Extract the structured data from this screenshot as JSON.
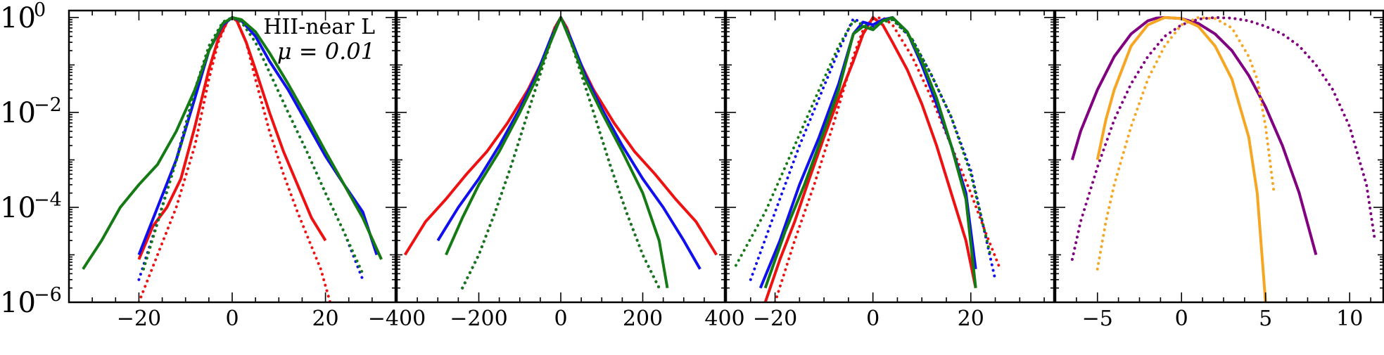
{
  "colors": {
    "red": "#ee1111",
    "blue": "#1010ee",
    "green": "#147a14",
    "orange": "#f5a623",
    "purple": "#800080"
  },
  "annotation": {
    "line1": "HII-near L",
    "line2": "μ = 0.01"
  },
  "yticks": [
    {
      "base": "10",
      "exp": "0",
      "value": 1
    },
    {
      "base": "10",
      "exp": "−2",
      "value": 0.01
    },
    {
      "base": "10",
      "exp": "−4",
      "value": 0.0001
    },
    {
      "base": "10",
      "exp": "−6",
      "value": 1e-06
    }
  ],
  "chart_data": [
    {
      "type": "line",
      "yscale": "log",
      "ylim": [
        1e-06,
        1.4
      ],
      "xlim": [
        -35,
        35
      ],
      "xticks": [
        -20,
        0,
        20
      ],
      "xticklabels": [
        "−20",
        "0",
        "20"
      ],
      "series": [
        {
          "color": "red",
          "style": "solid",
          "x": [
            -20,
            -17,
            -14,
            -11,
            -8,
            -5,
            -3,
            -1,
            0,
            1,
            3,
            5,
            8,
            11,
            14,
            17,
            20
          ],
          "y": [
            8e-06,
            4e-05,
            0.0001,
            0.0004,
            0.005,
            0.08,
            0.35,
            0.85,
            1,
            0.85,
            0.3,
            0.08,
            0.01,
            0.0015,
            0.0003,
            6e-05,
            2e-05
          ]
        },
        {
          "color": "red",
          "style": "dotted",
          "x": [
            -20,
            -16,
            -12,
            -8,
            -5,
            -3,
            -1,
            0,
            1,
            3,
            5,
            8,
            11,
            14,
            17,
            19,
            21
          ],
          "y": [
            1e-06,
            1e-05,
            0.0001,
            0.002,
            0.05,
            0.3,
            0.85,
            1,
            0.85,
            0.3,
            0.05,
            0.004,
            0.0005,
            8e-05,
            1.5e-05,
            5e-06,
            1e-06
          ]
        },
        {
          "color": "blue",
          "style": "solid",
          "x": [
            -20,
            -16,
            -12,
            -8,
            -5,
            -2,
            0,
            2,
            5,
            8,
            12,
            16,
            20,
            24,
            28,
            31
          ],
          "y": [
            1e-05,
            0.0001,
            0.001,
            0.02,
            0.2,
            0.7,
            1,
            0.85,
            0.4,
            0.12,
            0.03,
            0.006,
            0.0012,
            0.0003,
            8e-05,
            1e-05
          ]
        },
        {
          "color": "blue",
          "style": "dotted",
          "x": [
            -20,
            -16,
            -12,
            -8,
            -5,
            -2,
            0,
            2,
            5,
            8,
            12,
            16,
            20,
            24,
            28
          ],
          "y": [
            3e-06,
            5e-05,
            0.001,
            0.03,
            0.25,
            0.8,
            1,
            0.8,
            0.3,
            0.07,
            0.01,
            0.0015,
            0.0002,
            3e-05,
            3e-06
          ]
        },
        {
          "color": "green",
          "style": "solid",
          "x": [
            -32,
            -28,
            -24,
            -20,
            -16,
            -12,
            -8,
            -5,
            -2,
            0,
            2,
            5,
            8,
            12,
            16,
            20,
            24,
            28,
            32
          ],
          "y": [
            5e-06,
            2e-05,
            0.0001,
            0.0003,
            0.0008,
            0.004,
            0.03,
            0.2,
            0.75,
            1,
            0.9,
            0.5,
            0.18,
            0.04,
            0.008,
            0.0015,
            0.0003,
            6e-05,
            8e-06
          ]
        },
        {
          "color": "green",
          "style": "dotted",
          "x": [
            -19,
            -15,
            -11,
            -8,
            -5,
            -2,
            0,
            2,
            5,
            8,
            12,
            16,
            20,
            24,
            28
          ],
          "y": [
            5e-06,
            0.0001,
            0.002,
            0.03,
            0.25,
            0.8,
            1,
            0.8,
            0.3,
            0.07,
            0.01,
            0.0015,
            0.0002,
            3e-05,
            4e-06
          ]
        }
      ]
    },
    {
      "type": "line",
      "yscale": "log",
      "ylim": [
        1e-06,
        1.4
      ],
      "xlim": [
        -400,
        400
      ],
      "xticks": [
        -400,
        -200,
        0,
        200,
        400
      ],
      "xticklabels": [
        "−400",
        "−200",
        "0",
        "200",
        "400"
      ],
      "series": [
        {
          "color": "red",
          "style": "solid",
          "x": [
            -380,
            -330,
            -280,
            -230,
            -180,
            -130,
            -80,
            -40,
            -15,
            0,
            15,
            40,
            80,
            130,
            180,
            230,
            280,
            330,
            380
          ],
          "y": [
            1e-05,
            5e-05,
            0.00015,
            0.0005,
            0.0015,
            0.006,
            0.03,
            0.15,
            0.6,
            1,
            0.6,
            0.15,
            0.03,
            0.006,
            0.0015,
            0.0005,
            0.00015,
            5e-05,
            1e-05
          ]
        },
        {
          "color": "red",
          "style": "dotted",
          "x": [
            -240,
            -200,
            -160,
            -120,
            -80,
            -40,
            -15,
            0,
            15,
            40,
            80,
            120,
            160,
            200,
            240
          ],
          "y": [
            2e-06,
            1e-05,
            8e-05,
            0.0008,
            0.01,
            0.12,
            0.55,
            1,
            0.55,
            0.12,
            0.01,
            0.0008,
            8e-05,
            1e-05,
            2e-06
          ]
        },
        {
          "color": "blue",
          "style": "solid",
          "x": [
            -300,
            -250,
            -200,
            -150,
            -100,
            -60,
            -25,
            0,
            25,
            60,
            100,
            150,
            200,
            250,
            300,
            340
          ],
          "y": [
            2e-05,
            0.0001,
            0.0004,
            0.002,
            0.012,
            0.06,
            0.35,
            1,
            0.35,
            0.06,
            0.012,
            0.002,
            0.0004,
            0.0001,
            2e-05,
            5e-06
          ]
        },
        {
          "color": "blue",
          "style": "dotted",
          "x": [
            -240,
            -200,
            -160,
            -120,
            -80,
            -40,
            -15,
            0,
            15,
            40,
            80,
            120,
            160,
            200,
            240
          ],
          "y": [
            2e-06,
            1e-05,
            8e-05,
            0.0008,
            0.01,
            0.12,
            0.55,
            1,
            0.55,
            0.12,
            0.01,
            0.0008,
            8e-05,
            1e-05,
            2e-06
          ]
        },
        {
          "color": "green",
          "style": "solid",
          "x": [
            -280,
            -240,
            -200,
            -150,
            -100,
            -60,
            -25,
            0,
            25,
            60,
            100,
            150,
            200,
            240,
            260
          ],
          "y": [
            1e-05,
            6e-05,
            0.0003,
            0.0015,
            0.01,
            0.05,
            0.3,
            1,
            0.3,
            0.05,
            0.01,
            0.0015,
            0.0002,
            2e-05,
            2e-06
          ]
        },
        {
          "color": "green",
          "style": "dotted",
          "x": [
            -240,
            -200,
            -160,
            -120,
            -80,
            -40,
            -15,
            0,
            15,
            40,
            80,
            120,
            160,
            200,
            240
          ],
          "y": [
            2e-06,
            1e-05,
            8e-05,
            0.0008,
            0.01,
            0.12,
            0.55,
            1,
            0.55,
            0.12,
            0.01,
            0.0008,
            8e-05,
            1e-05,
            2e-06
          ]
        }
      ]
    },
    {
      "type": "line",
      "yscale": "log",
      "ylim": [
        1e-06,
        1.4
      ],
      "xlim": [
        -30,
        37
      ],
      "xticks": [
        -20,
        0,
        20
      ],
      "xticklabels": [
        "−20",
        "0",
        "20"
      ],
      "series": [
        {
          "color": "red",
          "style": "solid",
          "x": [
            -22,
            -19,
            -16,
            -13,
            -10,
            -7,
            -4,
            -2,
            0,
            2,
            4,
            7,
            10,
            13,
            16,
            19,
            21
          ],
          "y": [
            1e-06,
            8e-06,
            5e-05,
            0.0004,
            0.003,
            0.02,
            0.12,
            0.45,
            1,
            0.7,
            0.3,
            0.08,
            0.015,
            0.002,
            0.0002,
            2e-05,
            2e-06
          ]
        },
        {
          "color": "red",
          "style": "dotted",
          "x": [
            -20,
            -16,
            -12,
            -8,
            -4,
            -2,
            0,
            2,
            4,
            8,
            12,
            16,
            20,
            23,
            26
          ],
          "y": [
            1e-06,
            2e-05,
            0.0003,
            0.006,
            0.15,
            0.55,
            0.95,
            1,
            0.7,
            0.15,
            0.02,
            0.002,
            0.0002,
            3e-05,
            5e-06
          ]
        },
        {
          "color": "blue",
          "style": "solid",
          "x": [
            -23,
            -19,
            -15,
            -11,
            -7,
            -4,
            -2,
            0,
            2,
            4,
            7,
            10,
            13,
            16,
            19,
            21
          ],
          "y": [
            2e-06,
            2e-05,
            0.0003,
            0.003,
            0.04,
            0.45,
            0.8,
            0.7,
            0.9,
            1,
            0.5,
            0.1,
            0.015,
            0.002,
            0.0002,
            5e-06
          ]
        },
        {
          "color": "blue",
          "style": "dotted",
          "x": [
            -25,
            -20,
            -15,
            -11,
            -7,
            -4,
            -2,
            0,
            2,
            4,
            8,
            12,
            16,
            20,
            25
          ],
          "y": [
            3e-06,
            8e-05,
            0.002,
            0.02,
            0.2,
            0.95,
            0.75,
            0.65,
            0.85,
            0.95,
            0.35,
            0.06,
            0.008,
            0.0006,
            3e-06
          ]
        },
        {
          "color": "green",
          "style": "solid",
          "x": [
            -22,
            -18,
            -14,
            -10,
            -7,
            -4,
            -2,
            0,
            2,
            4,
            7,
            10,
            13,
            16,
            19,
            21
          ],
          "y": [
            2e-06,
            3e-05,
            0.0003,
            0.004,
            0.03,
            0.45,
            0.65,
            0.55,
            0.85,
            1,
            0.5,
            0.12,
            0.02,
            0.002,
            0.00015,
            2e-06
          ]
        },
        {
          "color": "green",
          "style": "dotted",
          "x": [
            -28,
            -22,
            -16,
            -11,
            -7,
            -4,
            -2,
            0,
            2,
            4,
            8,
            12,
            16,
            20,
            24
          ],
          "y": [
            6e-06,
            8e-05,
            0.002,
            0.03,
            0.25,
            0.85,
            0.7,
            0.6,
            0.8,
            0.9,
            0.35,
            0.06,
            0.008,
            0.0005,
            1e-05
          ]
        }
      ]
    },
    {
      "type": "line",
      "yscale": "log",
      "ylim": [
        1e-06,
        1.4
      ],
      "xlim": [
        -7.5,
        12
      ],
      "xticks": [
        -5,
        0,
        5,
        10
      ],
      "xticklabels": [
        "−5",
        "0",
        "5",
        "10"
      ],
      "series": [
        {
          "color": "purple",
          "style": "solid",
          "x": [
            -6.5,
            -6,
            -5,
            -4,
            -3,
            -2,
            -1.5,
            -1,
            0,
            1,
            2,
            3,
            4,
            5,
            6,
            7,
            8
          ],
          "y": [
            0.001,
            0.004,
            0.03,
            0.15,
            0.45,
            0.85,
            0.97,
            1,
            0.95,
            0.75,
            0.45,
            0.2,
            0.06,
            0.013,
            0.002,
            0.0002,
            1e-05
          ]
        },
        {
          "color": "purple",
          "style": "dotted",
          "x": [
            -6.5,
            -6,
            -5,
            -4,
            -3,
            -2,
            -1,
            0,
            1,
            2,
            3,
            4,
            5,
            6,
            7,
            8,
            9,
            10,
            11,
            11.5
          ],
          "y": [
            8e-06,
            5e-05,
            0.0007,
            0.007,
            0.04,
            0.15,
            0.4,
            0.7,
            0.92,
            1,
            0.97,
            0.85,
            0.65,
            0.45,
            0.25,
            0.1,
            0.03,
            0.005,
            0.0003,
            2e-05
          ]
        },
        {
          "color": "orange",
          "style": "solid",
          "x": [
            -5,
            -4.5,
            -4,
            -3,
            -2,
            -1,
            0,
            1,
            2,
            3,
            4,
            4.5,
            5
          ],
          "y": [
            0.001,
            0.007,
            0.03,
            0.25,
            0.7,
            1,
            0.95,
            0.65,
            0.25,
            0.05,
            0.003,
            0.0002,
            1e-06
          ]
        },
        {
          "color": "orange",
          "style": "dotted",
          "x": [
            -5,
            -4.5,
            -4,
            -3,
            -2,
            -1,
            0,
            1,
            2,
            3,
            4,
            4.5,
            5,
            5.5
          ],
          "y": [
            5e-06,
            5e-05,
            0.0003,
            0.005,
            0.05,
            0.25,
            0.7,
            1,
            0.95,
            0.6,
            0.15,
            0.05,
            0.005,
            0.0002
          ]
        }
      ]
    }
  ]
}
